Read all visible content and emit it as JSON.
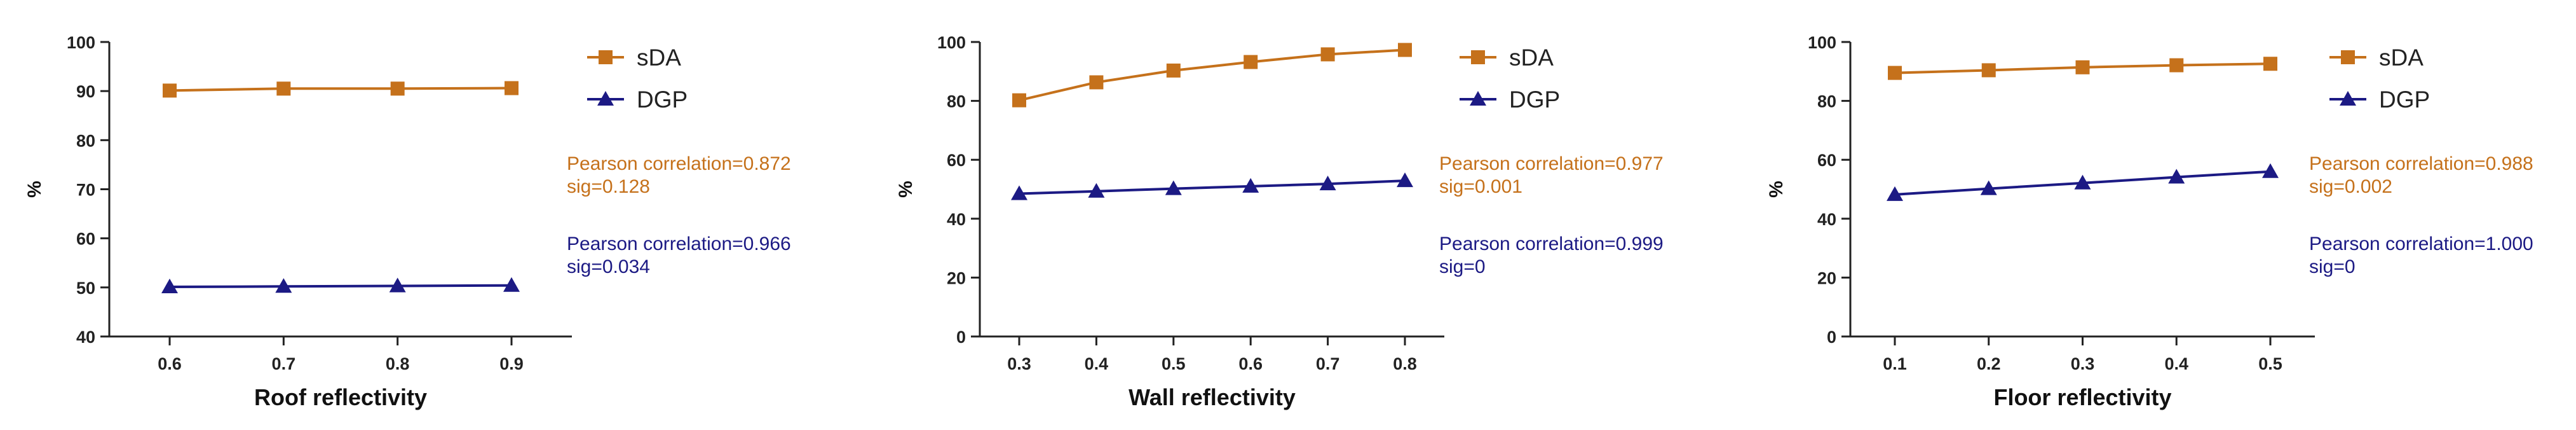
{
  "colors": {
    "sDA": "#c5711b",
    "DGP": "#1c1a84",
    "axis": "#222222"
  },
  "chart_data": [
    {
      "type": "line",
      "title": "",
      "xlabel": "Roof reflectivity",
      "ylabel": "%",
      "x": [
        0.6,
        0.7,
        0.8,
        0.9
      ],
      "x_tick_labels": [
        "0.6",
        "0.7",
        "0.8",
        "0.9"
      ],
      "ylim": [
        40,
        100
      ],
      "y_ticks": [
        40,
        50,
        60,
        70,
        80,
        90,
        100
      ],
      "grid": false,
      "legend": "top-right",
      "series": [
        {
          "name": "sDA",
          "marker": "square",
          "values": [
            90.1,
            90.5,
            90.5,
            90.6
          ]
        },
        {
          "name": "DGP",
          "marker": "triangle",
          "values": [
            50.1,
            50.2,
            50.3,
            50.4
          ]
        }
      ],
      "annotations": [
        {
          "series": "sDA",
          "lines": [
            "Pearson correlation=0.872",
            "sig=0.128"
          ]
        },
        {
          "series": "DGP",
          "lines": [
            "Pearson correlation=0.966",
            "sig=0.034"
          ]
        }
      ]
    },
    {
      "type": "line",
      "title": "",
      "xlabel": "Wall reflectivity",
      "ylabel": "%",
      "x": [
        0.3,
        0.4,
        0.5,
        0.6,
        0.7,
        0.8
      ],
      "x_tick_labels": [
        "0.3",
        "0.4",
        "0.5",
        "0.6",
        "0.7",
        "0.8"
      ],
      "ylim": [
        0,
        100
      ],
      "y_ticks": [
        0,
        20,
        40,
        60,
        80,
        100
      ],
      "grid": false,
      "legend": "top-right",
      "series": [
        {
          "name": "sDA",
          "marker": "square",
          "values": [
            80.2,
            86.3,
            90.3,
            93.2,
            95.8,
            97.3
          ]
        },
        {
          "name": "DGP",
          "marker": "triangle",
          "values": [
            48.5,
            49.3,
            50.2,
            51.0,
            51.8,
            52.9
          ]
        }
      ],
      "annotations": [
        {
          "series": "sDA",
          "lines": [
            "Pearson correlation=0.977",
            "sig=0.001"
          ]
        },
        {
          "series": "DGP",
          "lines": [
            "Pearson correlation=0.999",
            "sig=0"
          ]
        }
      ]
    },
    {
      "type": "line",
      "title": "",
      "xlabel": "Floor reflectivity",
      "ylabel": "%",
      "x": [
        0.1,
        0.2,
        0.3,
        0.4,
        0.5
      ],
      "x_tick_labels": [
        "0.1",
        "0.2",
        "0.3",
        "0.4",
        "0.5"
      ],
      "ylim": [
        0,
        100
      ],
      "y_ticks": [
        0,
        20,
        40,
        60,
        80,
        100
      ],
      "grid": false,
      "legend": "top-right",
      "series": [
        {
          "name": "sDA",
          "marker": "square",
          "values": [
            89.5,
            90.4,
            91.4,
            92.1,
            92.6
          ]
        },
        {
          "name": "DGP",
          "marker": "triangle",
          "values": [
            48.2,
            50.2,
            52.1,
            54.1,
            56.0
          ]
        }
      ],
      "annotations": [
        {
          "series": "sDA",
          "lines": [
            "Pearson correlation=0.988",
            "sig=0.002"
          ]
        },
        {
          "series": "DGP",
          "lines": [
            "Pearson correlation=1.000",
            "sig=0"
          ]
        }
      ]
    }
  ]
}
